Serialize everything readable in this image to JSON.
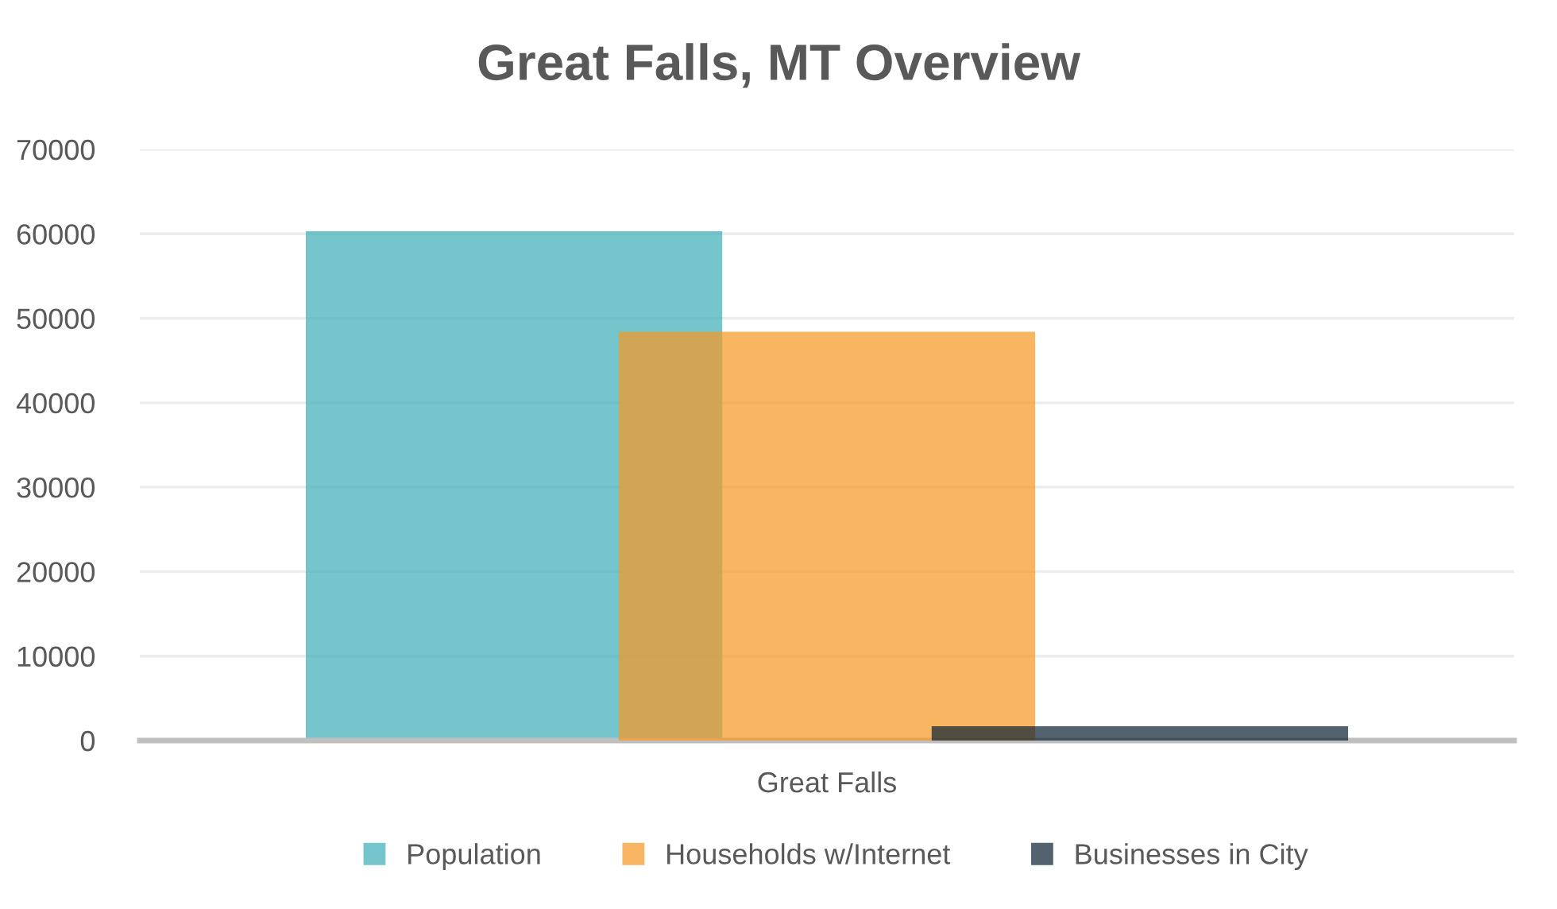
{
  "chart_data": {
    "type": "bar",
    "title": "Great Falls, MT Overview",
    "categories": [
      "Great Falls"
    ],
    "series": [
      {
        "name": "Population",
        "color": "#74c5cc",
        "values": [
          60300
        ]
      },
      {
        "name": "Households w/Internet",
        "color": "#f8b563",
        "values": [
          48400
        ]
      },
      {
        "name": "Businesses in City",
        "color": "#52626f",
        "values": [
          1700
        ]
      }
    ],
    "ylim": [
      0,
      70000
    ],
    "yticks": [
      0,
      10000,
      20000,
      30000,
      40000,
      50000,
      60000,
      70000
    ],
    "grid": "y",
    "legend": "bottom"
  }
}
